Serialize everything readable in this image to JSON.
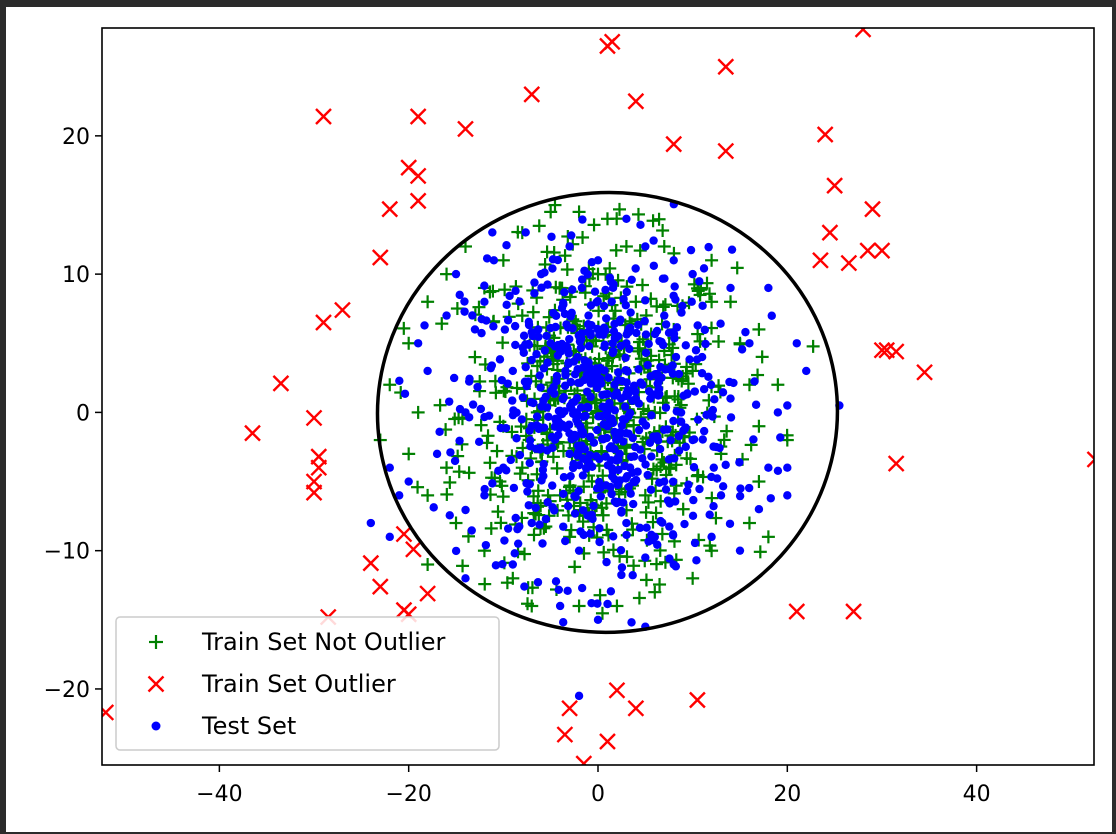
{
  "chart_data": {
    "type": "scatter",
    "title": "",
    "xlabel": "",
    "ylabel": "",
    "xlim": [
      -52.4,
      52.4
    ],
    "ylim": [
      -25.5,
      27.8
    ],
    "x_ticks": [
      -40,
      -20,
      0,
      20,
      40
    ],
    "y_ticks": [
      -20,
      -10,
      0,
      10,
      20
    ],
    "x_tick_labels": [
      "−40",
      "−20",
      "0",
      "20",
      "40"
    ],
    "y_tick_labels": [
      "−20",
      "−10",
      "0",
      "10",
      "20"
    ],
    "grid": false,
    "legend_position": "lower-left",
    "boundary": {
      "shape": "ellipse",
      "center": [
        1.0,
        0.0
      ],
      "x_radius": 24.3,
      "y_radius": 15.9,
      "color": "#000000"
    },
    "series": [
      {
        "name": "Train Set Not Outlier",
        "marker": "+",
        "color": "#008000",
        "distribution": "dense gaussian cluster centred at (0, 0), std about 7, about 600 points, all inside the boundary",
        "points": [
          [
            -5,
            14.5
          ],
          [
            -2,
            14.5
          ],
          [
            1,
            14
          ],
          [
            -8,
            13
          ],
          [
            3,
            12
          ],
          [
            -14,
            12
          ],
          [
            -10,
            11
          ],
          [
            7,
            12
          ],
          [
            12,
            11
          ],
          [
            14,
            8
          ],
          [
            17,
            6
          ],
          [
            15,
            5
          ],
          [
            12,
            8
          ],
          [
            16,
            2
          ],
          [
            19,
            2
          ],
          [
            17,
            -1
          ],
          [
            20,
            -2
          ],
          [
            17,
            -5
          ],
          [
            16,
            -8
          ],
          [
            12,
            -10
          ],
          [
            10,
            -12
          ],
          [
            6,
            -13
          ],
          [
            2,
            -14
          ],
          [
            -2,
            -14
          ],
          [
            -7,
            -14
          ],
          [
            -9,
            -12
          ],
          [
            -12,
            -10
          ],
          [
            -15,
            -8
          ],
          [
            -18,
            -6
          ],
          [
            -20,
            -3
          ],
          [
            -23,
            -2
          ],
          [
            -19,
            0
          ],
          [
            -22,
            2
          ],
          [
            -20,
            5
          ],
          [
            -18,
            8
          ],
          [
            -16,
            10
          ],
          [
            -12,
            9
          ],
          [
            -8,
            7
          ],
          [
            -4,
            9
          ],
          [
            0,
            10
          ],
          [
            4,
            8
          ],
          [
            8,
            6
          ],
          [
            10,
            3
          ],
          [
            6,
            0
          ],
          [
            3,
            -3
          ],
          [
            0,
            -5
          ],
          [
            -4,
            -6
          ],
          [
            -8,
            -4
          ],
          [
            -10,
            -1
          ],
          [
            -6,
            2
          ],
          [
            -2,
            4
          ],
          [
            2,
            2
          ],
          [
            5,
            -6
          ],
          [
            -3,
            -9
          ],
          [
            9,
            -7
          ],
          [
            -13,
            4
          ],
          [
            13,
            -3
          ],
          [
            -16,
            -4
          ],
          [
            18,
            -9
          ],
          [
            -18,
            -11
          ]
        ]
      },
      {
        "name": "Train Set Outlier",
        "marker": "x",
        "color": "#ff0000",
        "points": [
          [
            1,
            26.5
          ],
          [
            1.5,
            26.8
          ],
          [
            28,
            27.7
          ],
          [
            13.5,
            25
          ],
          [
            -7,
            23
          ],
          [
            4,
            22.5
          ],
          [
            -29,
            21.4
          ],
          [
            -19,
            21.4
          ],
          [
            -14,
            20.5
          ],
          [
            24,
            20.1
          ],
          [
            8,
            19.4
          ],
          [
            13.5,
            18.9
          ],
          [
            -20,
            17.7
          ],
          [
            -19,
            17.1
          ],
          [
            25,
            16.4
          ],
          [
            -19,
            15.3
          ],
          [
            -22,
            14.7
          ],
          [
            29,
            14.7
          ],
          [
            24.5,
            13
          ],
          [
            28.5,
            11.7
          ],
          [
            30,
            11.7
          ],
          [
            -23,
            11.2
          ],
          [
            23.5,
            11
          ],
          [
            26.5,
            10.8
          ],
          [
            -27,
            7.4
          ],
          [
            -29,
            6.5
          ],
          [
            30,
            4.5
          ],
          [
            30.5,
            4.5
          ],
          [
            31.5,
            4.4
          ],
          [
            34.5,
            2.9
          ],
          [
            -33.5,
            2.1
          ],
          [
            -30,
            -0.4
          ],
          [
            -36.5,
            -1.5
          ],
          [
            -29.5,
            -3.2
          ],
          [
            -29.5,
            -4.0
          ],
          [
            -30,
            -5.0
          ],
          [
            -30,
            -5.8
          ],
          [
            31.5,
            -3.7
          ],
          [
            52.5,
            -3.4
          ],
          [
            -20.5,
            -8.8
          ],
          [
            -19.5,
            -9.9
          ],
          [
            -24,
            -10.9
          ],
          [
            -23,
            -12.6
          ],
          [
            -18,
            -13.1
          ],
          [
            -20.5,
            -14.3
          ],
          [
            -20,
            -14.6
          ],
          [
            -28.5,
            -14.8
          ],
          [
            21,
            -14.4
          ],
          [
            27,
            -14.4
          ],
          [
            2,
            -20.1
          ],
          [
            10.5,
            -20.8
          ],
          [
            -3,
            -21.4
          ],
          [
            4,
            -21.4
          ],
          [
            -52,
            -21.7
          ],
          [
            -3.5,
            -23.3
          ],
          [
            1,
            -23.8
          ],
          [
            -1.5,
            -25.4
          ]
        ]
      },
      {
        "name": "Test Set",
        "marker": "o",
        "color": "#0000ff",
        "distribution": "dense gaussian cluster centred at (0, 0), std about 7, about 700 points",
        "points": [
          [
            -3,
            12
          ],
          [
            5,
            12
          ],
          [
            3,
            14
          ],
          [
            -11,
            11
          ],
          [
            -15,
            10
          ],
          [
            -19,
            5
          ],
          [
            -21,
            -6
          ],
          [
            -22,
            -9
          ],
          [
            -24,
            -8
          ],
          [
            -22,
            -4
          ],
          [
            -14,
            -12
          ],
          [
            -9,
            -11
          ],
          [
            -4,
            -14
          ],
          [
            0,
            -15
          ],
          [
            5,
            -15.5
          ],
          [
            8,
            -11
          ],
          [
            12,
            -9
          ],
          [
            17,
            -7
          ],
          [
            20,
            -6
          ],
          [
            20,
            -4
          ],
          [
            19,
            0
          ],
          [
            22,
            3
          ],
          [
            21,
            5
          ],
          [
            25.5,
            0.5
          ],
          [
            18,
            9
          ],
          [
            14,
            9
          ],
          [
            10,
            10
          ],
          [
            8,
            11
          ],
          [
            0,
            11
          ],
          [
            -6,
            10
          ],
          [
            -12,
            8
          ],
          [
            -16,
            7
          ],
          [
            -18,
            3
          ],
          [
            -14,
            0
          ],
          [
            -17,
            -3
          ],
          [
            -12,
            -6
          ],
          [
            -7,
            -8
          ],
          [
            -2,
            -10
          ],
          [
            3,
            -8
          ],
          [
            7,
            -5
          ],
          [
            10,
            -2
          ],
          [
            14,
            1
          ],
          [
            11,
            4
          ],
          [
            7,
            7
          ],
          [
            3,
            5
          ],
          [
            -1,
            7
          ],
          [
            -5,
            5
          ],
          [
            -9,
            3
          ],
          [
            -7,
            -1
          ],
          [
            -3,
            -3
          ],
          [
            1,
            -1
          ],
          [
            4,
            1
          ],
          [
            0,
            3
          ],
          [
            -4,
            0
          ],
          [
            2,
            -5
          ],
          [
            -10,
            -4
          ],
          [
            6,
            -9
          ],
          [
            13,
            -6
          ],
          [
            -13,
            6
          ],
          [
            16,
            5
          ],
          [
            -2,
            -20.5
          ],
          [
            20,
            0.5
          ],
          [
            -20,
            -5
          ],
          [
            18,
            -4
          ],
          [
            15,
            -10
          ]
        ]
      }
    ]
  }
}
